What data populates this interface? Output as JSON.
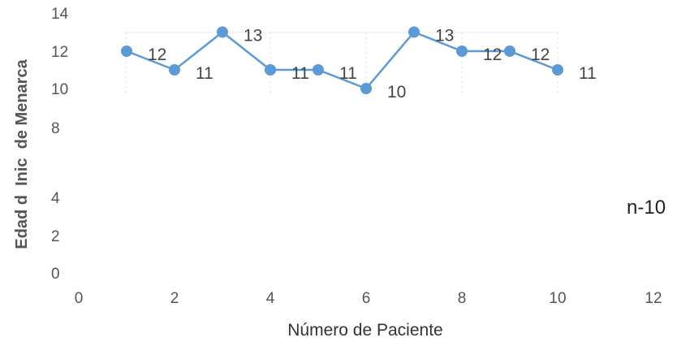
{
  "chart_data": {
    "type": "line",
    "x": [
      1,
      2,
      3,
      4,
      5,
      6,
      7,
      8,
      9,
      10
    ],
    "series": [
      {
        "values": [
          12,
          11,
          13,
          11,
          11,
          10,
          13,
          12,
          12,
          11
        ]
      }
    ],
    "data_labels": [
      "12",
      "11",
      "13",
      "11",
      "11",
      "10",
      "13",
      "12",
      "12",
      "11"
    ],
    "xlabel": "Número de Paciente",
    "ylabel": "Edad d  Inic  de Menarca",
    "xlim": [
      0,
      12
    ],
    "ylim": [
      0,
      14
    ],
    "x_ticks": [
      "0",
      "2",
      "4",
      "6",
      "8",
      "10",
      "12"
    ],
    "y_ticks": [
      "0",
      "2",
      "4",
      "8",
      "10",
      "12",
      "14"
    ],
    "annotation": "n-10",
    "line_color": "#5b9bd5",
    "grid": true
  }
}
